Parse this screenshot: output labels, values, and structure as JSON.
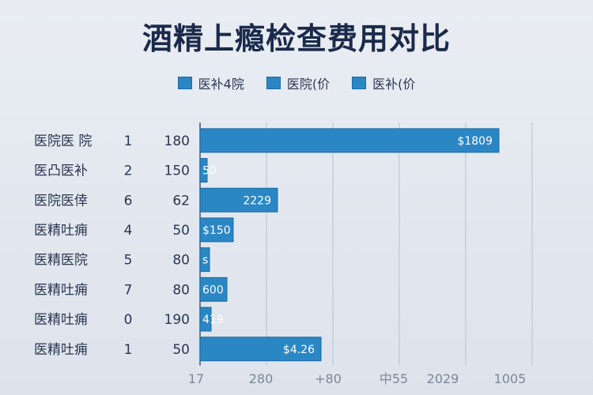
{
  "chart_data": {
    "type": "bar",
    "orientation": "horizontal",
    "title": "酒精上瘾检查费用对比",
    "legend": [
      "医补4院",
      "医院(价",
      "医补(价"
    ],
    "legend_placement": "top-center",
    "rows": [
      {
        "label": "医院医 院",
        "num": "1",
        "value": 180,
        "bar_label": "$1809"
      },
      {
        "label": "医凸医补",
        "num": "2",
        "value": 150,
        "bar_label": "50"
      },
      {
        "label": "医院医倖",
        "num": "6",
        "value": 62,
        "bar_label": "2229"
      },
      {
        "label": "医精吐痈",
        "num": "4",
        "value": 50,
        "bar_label": "$150"
      },
      {
        "label": "医精医院",
        "num": "5",
        "value": 80,
        "bar_label": "s"
      },
      {
        "label": "医精吐痈",
        "num": "7",
        "value": 80,
        "bar_label": "600"
      },
      {
        "label": "医精吐痈",
        "num": "0",
        "value": 190,
        "bar_label": "419"
      },
      {
        "label": "医精吐痈",
        "num": "1",
        "value": 50,
        "bar_label": "$4.26"
      }
    ],
    "bar_values": [
      1809,
      50,
      2229,
      150,
      60,
      600,
      70,
      4.26
    ],
    "x_ticks": [
      "17\u0001",
      "280",
      "+80",
      "中55",
      "2029",
      "1005"
    ],
    "colors": {
      "bar": "#2b86c4",
      "bar_edge": "#1c6aa2"
    },
    "grid": true
  }
}
